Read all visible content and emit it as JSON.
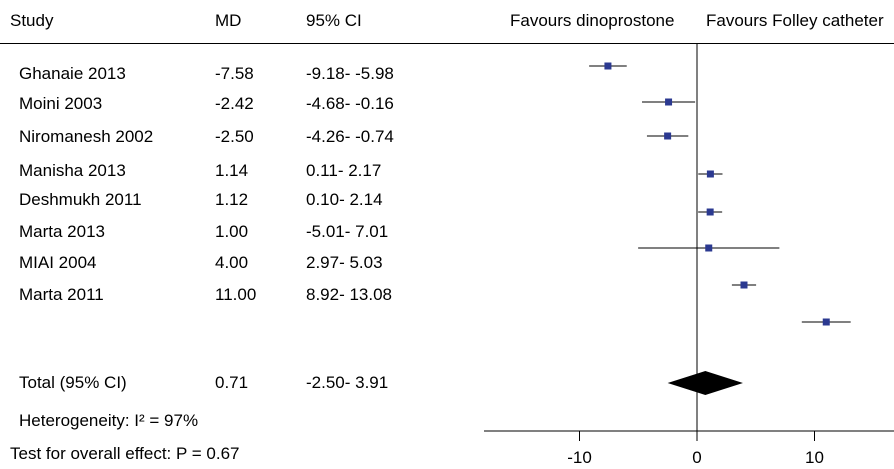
{
  "header": {
    "study": "Study",
    "md": "MD",
    "ci": "95% CI",
    "favours_left": "Favours dinoprostone",
    "favours_right": "Favours Folley catheter"
  },
  "rows": [
    {
      "study": "Ghanaie 2013",
      "md": "-7.58",
      "ci": "-9.18- -5.98"
    },
    {
      "study": "Moini 2003",
      "md": "-2.42",
      "ci": "-4.68- -0.16"
    },
    {
      "study": "Niromanesh 2002",
      "md": "-2.50",
      "ci": "-4.26- -0.74"
    },
    {
      "study": "Manisha 2013",
      "md": "1.14",
      "ci": "0.11- 2.17"
    },
    {
      "study": "Deshmukh 2011",
      "md": "1.12",
      "ci": "0.10- 2.14"
    },
    {
      "study": "Marta 2013",
      "md": "1.00",
      "ci": "-5.01- 7.01"
    },
    {
      "study": "MIAI 2004",
      "md": "4.00",
      "ci": "2.97- 5.03"
    },
    {
      "study": "Marta 2011",
      "md": "11.00",
      "ci": "8.92- 13.08"
    }
  ],
  "total": {
    "label": "Total (95% CI)",
    "md": "0.71",
    "ci": "-2.50- 3.91"
  },
  "heterogeneity": "Heterogeneity: I² = 97%",
  "overall_effect": "Test for overall effect: P = 0.67",
  "chart_data": {
    "type": "forest",
    "xlim": [
      -18.5,
      16
    ],
    "xticks": [
      -10,
      0,
      10
    ],
    "xtick_labels": [
      "-10",
      "0",
      "10"
    ],
    "studies": [
      {
        "name": "Ghanaie 2013",
        "md": -7.58,
        "lo": -9.18,
        "hi": -5.98
      },
      {
        "name": "Moini 2003",
        "md": -2.42,
        "lo": -4.68,
        "hi": -0.16
      },
      {
        "name": "Niromanesh 2002",
        "md": -2.5,
        "lo": -4.26,
        "hi": -0.74
      },
      {
        "name": "Manisha 2013",
        "md": 1.14,
        "lo": 0.11,
        "hi": 2.17
      },
      {
        "name": "Deshmukh 2011",
        "md": 1.12,
        "lo": 0.1,
        "hi": 2.14
      },
      {
        "name": "Marta 2013",
        "md": 1.0,
        "lo": -5.01,
        "hi": 7.01
      },
      {
        "name": "MIAI 2004",
        "md": 4.0,
        "lo": 2.97,
        "hi": 5.03
      },
      {
        "name": "Marta 2011",
        "md": 11.0,
        "lo": 8.92,
        "hi": 13.08
      }
    ],
    "pooled": {
      "md": 0.71,
      "lo": -2.5,
      "hi": 3.91
    },
    "colors": {
      "marker": "#2b3990",
      "line": "#000000",
      "diamond": "#000000"
    }
  }
}
